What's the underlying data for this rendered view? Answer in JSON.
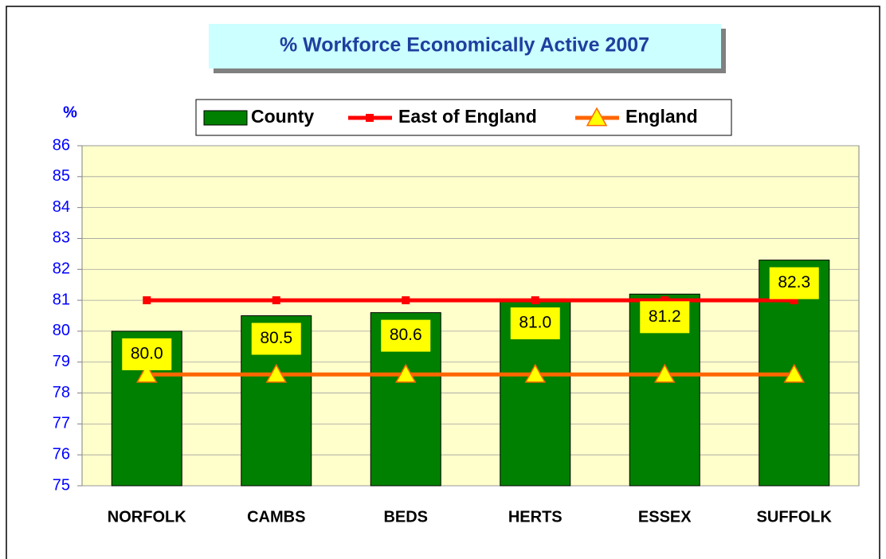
{
  "chart_data": {
    "type": "bar",
    "title": "% Workforce Economically Active 2007",
    "y_label": "%",
    "categories": [
      "NORFOLK",
      "CAMBS",
      "BEDS",
      "HERTS",
      "ESSEX",
      "SUFFOLK"
    ],
    "series": [
      {
        "name": "County",
        "type": "bar",
        "color": "#008000",
        "values": [
          80.0,
          80.5,
          80.6,
          81.0,
          81.2,
          82.3
        ],
        "value_labels": [
          "80.0",
          "80.5",
          "80.6",
          "81.0",
          "81.2",
          "82.3"
        ]
      },
      {
        "name": "East of England",
        "type": "line",
        "color": "#ff0000",
        "values": [
          81.0,
          81.0,
          81.0,
          81.0,
          81.0,
          81.0
        ]
      },
      {
        "name": "England",
        "type": "line",
        "color": "#ff6600",
        "values": [
          78.6,
          78.6,
          78.6,
          78.6,
          78.6,
          78.6
        ]
      }
    ],
    "ylim": [
      75,
      86
    ],
    "yticks": [
      75,
      76,
      77,
      78,
      79,
      80,
      81,
      82,
      83,
      84,
      85,
      86
    ],
    "grid": true,
    "legend": "top"
  }
}
